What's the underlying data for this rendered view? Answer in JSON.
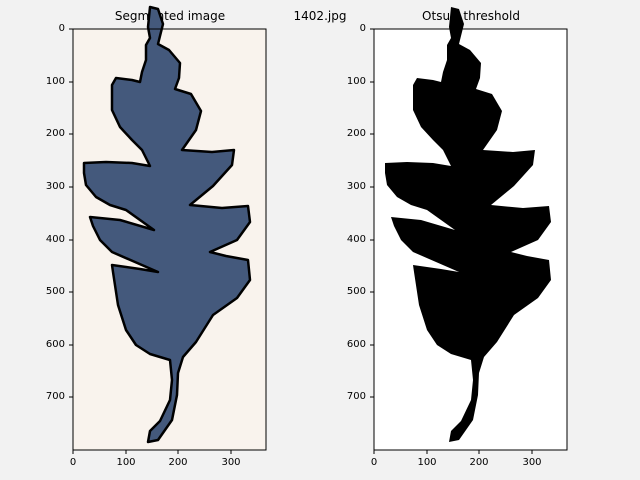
{
  "figure": {
    "suptitle": "1402.jpg"
  },
  "panels": [
    {
      "title": "Segmented image",
      "x_ticks": [
        "0",
        "100",
        "200",
        "300"
      ],
      "y_ticks": [
        "0",
        "100",
        "200",
        "300",
        "400",
        "500",
        "600",
        "700"
      ],
      "x_range": [
        0,
        365
      ],
      "y_range": [
        0,
        800
      ],
      "background_color": "#f9f3ed",
      "leaf_color": "#44597c",
      "outline_color": "#000000"
    },
    {
      "title": "Otsu's threshold",
      "x_ticks": [
        "0",
        "100",
        "200",
        "300"
      ],
      "y_ticks": [
        "0",
        "100",
        "200",
        "300",
        "400",
        "500",
        "600",
        "700"
      ],
      "x_range": [
        0,
        365
      ],
      "y_range": [
        0,
        800
      ],
      "background_color": "#ffffff",
      "leaf_color": "#000000"
    }
  ]
}
